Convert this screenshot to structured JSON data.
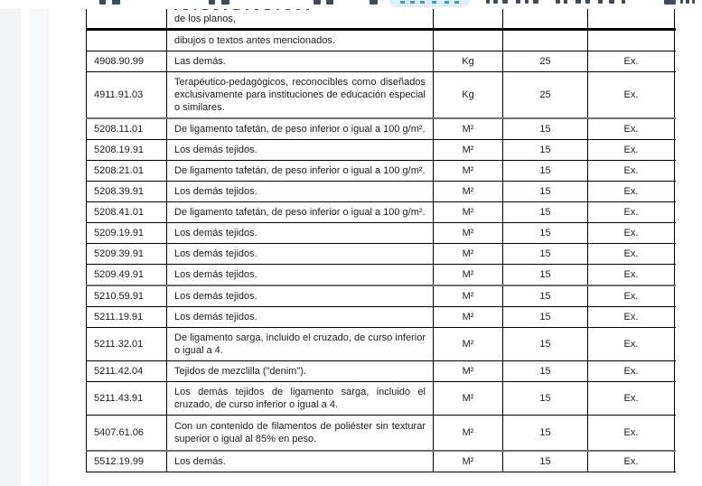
{
  "viewer": {
    "toolbar": {
      "note": "toolbar cropped at top edge; only bottom slivers of controls visible",
      "pill_bg": "#def0fa",
      "accent_blue": "#1ba6e5",
      "icon_color": "#3f4b5b"
    }
  },
  "table": {
    "border_color": "#000000",
    "rows": [
      {
        "code": "",
        "desc": "de los planos,",
        "unit": "",
        "rate": "",
        "ex": "",
        "clipped_top": true,
        "thick_bottom": true
      },
      {
        "code": "",
        "desc": "dibujos o textos antes mencionados.",
        "unit": "",
        "rate": "",
        "ex": ""
      },
      {
        "code": "4908.90.99",
        "desc": "Las demás.",
        "unit": "Kg",
        "rate": "25",
        "ex": "Ex."
      },
      {
        "code": "4911.91.03",
        "desc": "Terapéutico-pedagógicos, reconocibles como diseñados exclusivamente para instituciones de educación especial o similares.",
        "unit": "Kg",
        "rate": "25",
        "ex": "Ex.",
        "section_end": true
      },
      {
        "code": "5208.11.01",
        "desc": "De ligamento tafetán, de peso inferior o igual a 100 g/m².",
        "unit": "M²",
        "rate": "15",
        "ex": "Ex."
      },
      {
        "code": "5208.19.91",
        "desc": "Los demás tejidos.",
        "unit": "M²",
        "rate": "15",
        "ex": "Ex."
      },
      {
        "code": "5208.21.01",
        "desc": "De ligamento tafetán, de peso inferior o igual a 100 g/m².",
        "unit": "M²",
        "rate": "15",
        "ex": "Ex."
      },
      {
        "code": "5208.39.91",
        "desc": "Los demás tejidos.",
        "unit": "M²",
        "rate": "15",
        "ex": "Ex."
      },
      {
        "code": "5208.41.01",
        "desc": "De ligamento tafetán, de peso inferior o igual a 100 g/m².",
        "unit": "M²",
        "rate": "15",
        "ex": "Ex."
      },
      {
        "code": "5209.19.91",
        "desc": "Los demás tejidos.",
        "unit": "M²",
        "rate": "15",
        "ex": "Ex."
      },
      {
        "code": "5209.39.91",
        "desc": "Los demás tejidos.",
        "unit": "M²",
        "rate": "15",
        "ex": "Ex."
      },
      {
        "code": "5209.49.91",
        "desc": "Los demás tejidos.",
        "unit": "M²",
        "rate": "15",
        "ex": "Ex.",
        "section_end": true
      },
      {
        "code": "5210.59.91",
        "desc": "Los demás tejidos.",
        "unit": "M²",
        "rate": "15",
        "ex": "Ex."
      },
      {
        "code": "5211.19.91",
        "desc": "Los demás tejidos.",
        "unit": "M²",
        "rate": "15",
        "ex": "Ex."
      },
      {
        "code": "5211.32.01",
        "desc": "De ligamento sarga, incluido el cruzado, de curso inferior o igual a 4.",
        "unit": "M²",
        "rate": "15",
        "ex": "Ex."
      },
      {
        "code": "5211.42.04",
        "desc": "Tejidos de mezclilla (\"denim\").",
        "unit": "M²",
        "rate": "15",
        "ex": "Ex."
      },
      {
        "code": "5211.43.91",
        "desc": "Los demás tejidos de ligamento sarga, incluido el cruzado, de curso inferior o igual a 4.",
        "unit": "M²",
        "rate": "15",
        "ex": "Ex."
      },
      {
        "code": "5407.61.06",
        "desc": "Con un contenido de filamentos de poliéster sin texturar superior o igual al 85% en peso.",
        "unit": "M²",
        "rate": "15",
        "ex": "Ex.",
        "section_end": true
      },
      {
        "code": "5512.19.99",
        "desc": "Los demás.",
        "unit": "M²",
        "rate": "15",
        "ex": "Ex."
      }
    ]
  }
}
